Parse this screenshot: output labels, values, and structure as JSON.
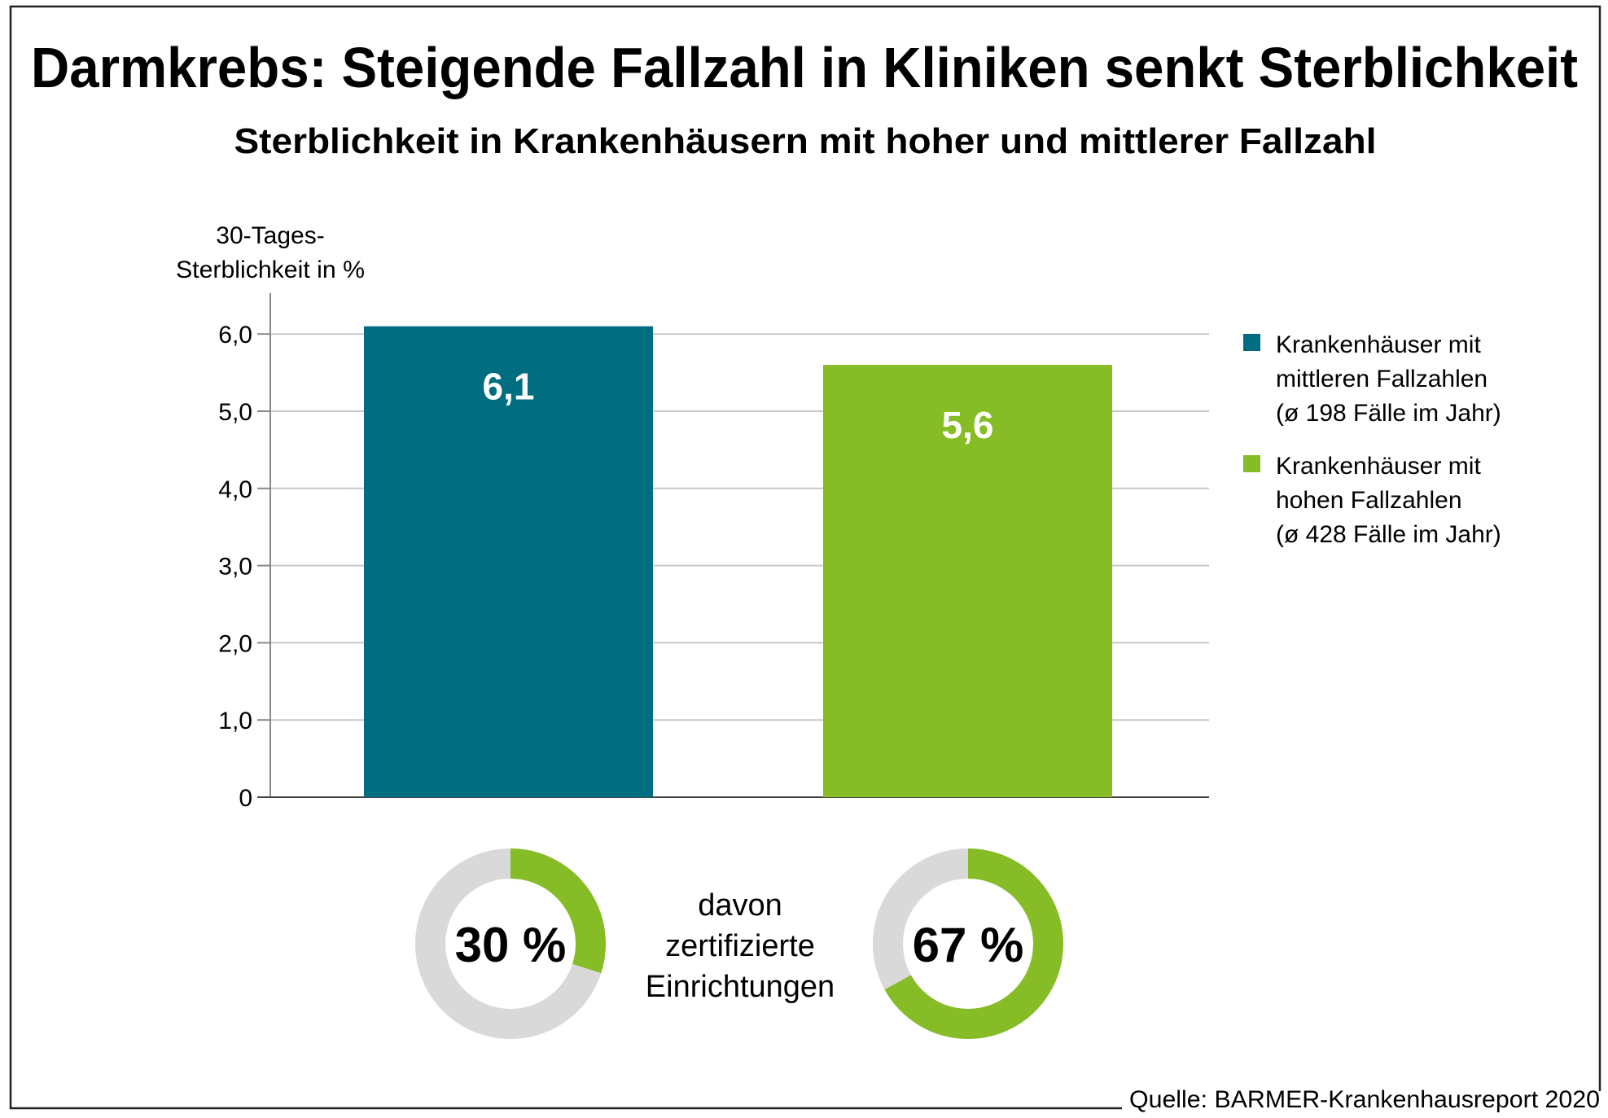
{
  "chart_data": {
    "type": "bar",
    "title": "Darmkrebs: Steigende Fallzahl in Kliniken senkt Sterblichkeit",
    "subtitle": "Sterblichkeit in Krankenhäusern mit hoher und mittlerer Fallzahl",
    "ylabel_lines": [
      "30-Tages-",
      "Sterblichkeit in %"
    ],
    "ylim": [
      0,
      6.5
    ],
    "yticks": [
      0,
      1,
      2,
      3,
      4,
      5,
      6
    ],
    "ytick_labels": [
      "0",
      "1,0",
      "2,0",
      "3,0",
      "4,0",
      "5,0",
      "6,0"
    ],
    "grid": true,
    "series": [
      {
        "name": "Krankenhäuser mit mittleren Fallzahlen (ø 198 Fälle im Jahr)",
        "value": 6.1,
        "label": "6,1",
        "color": "#006d80",
        "legend_lines": [
          "Krankenhäuser mit",
          "mittleren Fallzahlen",
          "(ø 198 Fälle im Jahr)"
        ]
      },
      {
        "name": "Krankenhäuser mit hohen Fallzahlen (ø 428 Fälle im Jahr)",
        "value": 5.6,
        "label": "5,6",
        "color": "#86bc25",
        "legend_lines": [
          "Krankenhäuser mit",
          "hohen Fallzahlen",
          "(ø 428 Fälle im Jahr)"
        ]
      }
    ],
    "legend_position": "right",
    "donuts": [
      {
        "value": 30,
        "label": "30 %",
        "color": "#86bc25",
        "rest_color": "#d9d9d9"
      },
      {
        "value": 67,
        "label": "67 %",
        "color": "#86bc25",
        "rest_color": "#d9d9d9"
      }
    ],
    "donut_caption_lines": [
      "davon",
      "zertifizierte",
      "Einrichtungen"
    ],
    "source": "Quelle: BARMER-Krankenhausreport 2020"
  }
}
